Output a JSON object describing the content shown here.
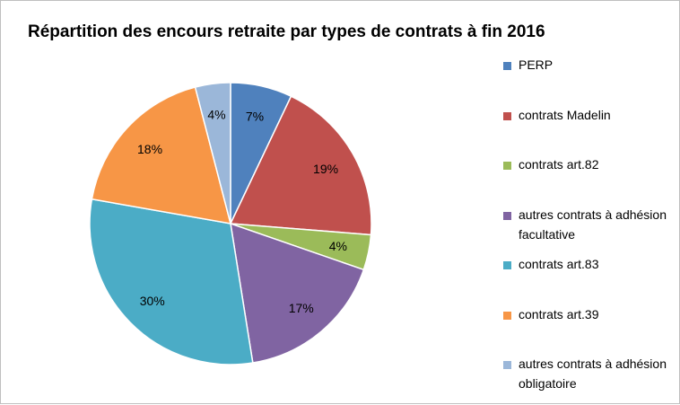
{
  "chart_data": {
    "type": "pie",
    "title": "Répartition des encours retraite par types de contrats à fin 2016",
    "legend_position": "right",
    "slices": [
      {
        "label": "PERP",
        "value": 7,
        "display": "7%",
        "color": "#4F81BD"
      },
      {
        "label": "contrats Madelin",
        "value": 19,
        "display": "19%",
        "color": "#C0504D"
      },
      {
        "label": "contrats art.82",
        "value": 4,
        "display": "4%",
        "color": "#9BBB59"
      },
      {
        "label": "autres contrats à adhésion facultative",
        "value": 17,
        "display": "17%",
        "color": "#8064A2"
      },
      {
        "label": "contrats art.83",
        "value": 30,
        "display": "30%",
        "color": "#4BACC6"
      },
      {
        "label": "contrats art.39",
        "value": 18,
        "display": "18%",
        "color": "#F79646"
      },
      {
        "label": "autres contrats à adhésion obligatoire",
        "value": 4,
        "display": "4%",
        "color": "#9BB7D9"
      }
    ]
  }
}
